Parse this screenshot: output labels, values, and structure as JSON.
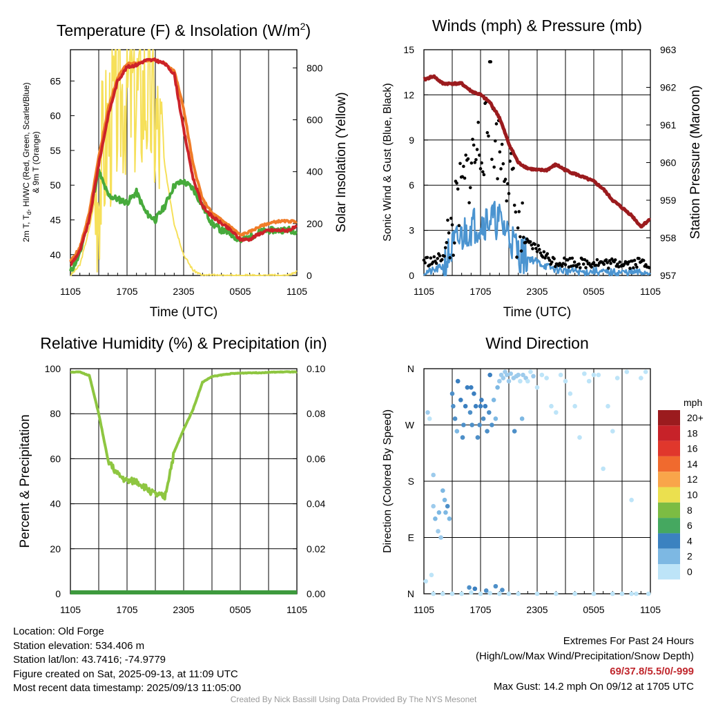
{
  "colors": {
    "red": "#cc2229",
    "orange": "#f07c28",
    "green": "#47aa3c",
    "darkgreen": "#4a8c3a",
    "yellow": "#f6e05a",
    "maroon": "#9b1b1e",
    "blue": "#4b94d0",
    "black": "#000000",
    "rh": "#8ec641",
    "precip": "#3e9a3e"
  },
  "x_ticks": [
    "1105",
    "1705",
    "2305",
    "0505",
    "1105"
  ],
  "panels": {
    "temp": {
      "title": "Temperature (F) & Insolation (W/m²)",
      "title_main": "Temperature (F) & Insolation (W/m",
      "title_sup": "2",
      "title_close": ")",
      "xlabel": "Time (UTC)",
      "ylabel_left_1": "2m T, T",
      "ylabel_left_sub": "d",
      "ylabel_left_2": ", HI/WC (Red, Green, Scarlet/Blue)",
      "ylabel_left_3": "& 9m T (Orange)",
      "ylabel_right": "Solar Insolation (Yellow)",
      "left_ticks": [
        "40",
        "45",
        "50",
        "55",
        "60",
        "65"
      ],
      "right_ticks": [
        "0",
        "200",
        "400",
        "600",
        "800"
      ]
    },
    "wind": {
      "title": "Winds (mph) & Pressure (mb)",
      "xlabel": "Time (UTC)",
      "ylabel_left": "Sonic Wind & Gust (Blue, Black)",
      "ylabel_right": "Station Pressure (Maroon)",
      "left_ticks": [
        "0",
        "3",
        "6",
        "9",
        "12",
        "15"
      ],
      "right_ticks": [
        "957",
        "958",
        "959",
        "960",
        "961",
        "962",
        "963"
      ]
    },
    "rh": {
      "title": "Relative Humidity (%) & Precipitation (in)",
      "ylabel_left": "Percent & Precipitation",
      "left_ticks": [
        "0",
        "20",
        "40",
        "60",
        "80",
        "100"
      ],
      "right_ticks": [
        "0.00",
        "0.02",
        "0.04",
        "0.06",
        "0.08",
        "0.10"
      ]
    },
    "dir": {
      "title": "Wind Direction",
      "ylabel_left": "Direction (Colored By Speed)",
      "dir_ticks": [
        "N",
        "E",
        "S",
        "W",
        "N"
      ],
      "legend_title": "mph",
      "legend_labels": [
        "20+",
        "18",
        "16",
        "14",
        "12",
        "10",
        "8",
        "6",
        "4",
        "2",
        "0"
      ],
      "legend_colors": [
        "#9b1b1e",
        "#c72229",
        "#e0372c",
        "#f06a2e",
        "#f9a54a",
        "#ebe04f",
        "#7cbc43",
        "#45a860",
        "#3b82c0",
        "#7db8e3",
        "#bde4f8"
      ]
    }
  },
  "chart_data": [
    {
      "type": "line",
      "panel": "temp",
      "title": "Temperature (F) & Insolation (W/m2)",
      "xlabel": "Time (UTC)",
      "x": [
        0,
        1,
        2,
        3,
        4,
        5,
        6,
        7,
        8,
        9,
        10,
        11,
        12,
        13,
        14,
        15,
        16,
        17,
        18,
        19,
        20,
        21,
        22,
        23,
        24
      ],
      "ylim": [
        37,
        69.5
      ],
      "y2lim": [
        0,
        870
      ],
      "series": [
        {
          "color": "red",
          "axis": "left",
          "values": [
            38.5,
            40.5,
            45,
            53,
            60,
            65,
            67,
            67.3,
            68,
            68,
            67.5,
            66,
            58,
            51,
            47,
            45.5,
            44.5,
            43.5,
            42.2,
            42.2,
            43,
            43.5,
            43.5,
            43.5,
            44
          ]
        },
        {
          "color": "orange",
          "axis": "left",
          "values": [
            39,
            41,
            46,
            54,
            61,
            65.5,
            67.5,
            67.5,
            68,
            68,
            67.5,
            66.5,
            61,
            53,
            48,
            46,
            45,
            44,
            42.8,
            43.3,
            44,
            44.5,
            44.8,
            44.8,
            44.8
          ]
        },
        {
          "color": "green",
          "axis": "left",
          "values": [
            37.5,
            40,
            46,
            52,
            48.5,
            48,
            47.5,
            49,
            46,
            45,
            47,
            50,
            50.5,
            49.5,
            47,
            44.5,
            43.5,
            43,
            42,
            42.5,
            43.2,
            43.5,
            43.5,
            43.6,
            43.4
          ]
        },
        {
          "color": "yellow",
          "axis": "right",
          "values": [
            0,
            40,
            180,
            380,
            570,
            680,
            730,
            700,
            720,
            600,
            420,
            200,
            80,
            20,
            0,
            0,
            0,
            0,
            0,
            0,
            0,
            0,
            0,
            0,
            15
          ]
        }
      ]
    },
    {
      "type": "line",
      "panel": "wind",
      "title": "Winds (mph) & Pressure (mb)",
      "xlabel": "Time (UTC)",
      "x": [
        0,
        1,
        2,
        3,
        4,
        5,
        6,
        7,
        8,
        9,
        10,
        11,
        12,
        13,
        14,
        15,
        16,
        17,
        18,
        19,
        20,
        21,
        22,
        23,
        24
      ],
      "ylim": [
        0,
        15
      ],
      "y2lim": [
        957,
        963
      ],
      "series": [
        {
          "color": "blue",
          "axis": "left",
          "values": [
            0.2,
            0.3,
            0.6,
            1.8,
            2.6,
            3.3,
            3.5,
            3.8,
            3.6,
            2.8,
            1.5,
            1.2,
            0.9,
            0.6,
            0.4,
            0.3,
            0.3,
            0.2,
            0.3,
            0.2,
            0.2,
            0.2,
            0.2,
            0.2,
            0.2
          ]
        },
        {
          "color": "black",
          "axis": "left",
          "style": "points",
          "values": [
            1.0,
            0.9,
            1.3,
            3.0,
            5.5,
            7.5,
            8.8,
            9.5,
            8.5,
            7.0,
            3.0,
            2.0,
            1.8,
            1.2,
            0.9,
            0.9,
            0.9,
            0.8,
            0.9,
            0.8,
            0.8,
            0.9,
            0.8,
            0.9,
            0.8
          ]
        },
        {
          "color": "maroon",
          "axis": "right",
          "values": [
            962.2,
            962.3,
            962.1,
            962.1,
            962.1,
            961.9,
            961.8,
            961.6,
            961.2,
            960.5,
            960.0,
            959.85,
            959.8,
            959.8,
            959.95,
            959.8,
            959.7,
            959.6,
            959.5,
            959.3,
            959.0,
            958.8,
            958.6,
            958.3,
            958.5
          ]
        }
      ]
    },
    {
      "type": "line",
      "panel": "rh",
      "title": "Relative Humidity (%) & Precipitation (in)",
      "x": [
        0,
        1,
        2,
        3,
        4,
        5,
        6,
        7,
        8,
        9,
        10,
        11,
        12,
        13,
        14,
        15,
        16,
        17,
        18,
        19,
        20,
        21,
        22,
        23,
        24
      ],
      "ylim": [
        0,
        100
      ],
      "y2lim": [
        0,
        0.1
      ],
      "series": [
        {
          "color": "rh",
          "axis": "left",
          "values": [
            98.5,
            98.5,
            97,
            80,
            59,
            53,
            50,
            50,
            47,
            44,
            43,
            63,
            73,
            82,
            94,
            96.5,
            97.2,
            97.8,
            98,
            98.2,
            98.2,
            98.4,
            98.5,
            98.6,
            98.5
          ]
        },
        {
          "color": "precip",
          "axis": "right",
          "values": [
            0,
            0,
            0,
            0,
            0,
            0,
            0,
            0,
            0,
            0,
            0,
            0,
            0,
            0,
            0,
            0,
            0,
            0,
            0,
            0,
            0,
            0,
            0,
            0,
            0
          ]
        }
      ]
    },
    {
      "type": "scatter",
      "panel": "dir",
      "title": "Wind Direction",
      "ylabel": "Direction (Colored By Speed)",
      "ylim": [
        0,
        360
      ],
      "x_unit": "hours after 1105 UTC",
      "points_x": [
        0.2,
        0.4,
        0.6,
        0.8,
        1.0,
        1.0,
        1.2,
        1.5,
        1.6,
        1.8,
        2.0,
        2.2,
        2.3,
        2.5,
        2.7,
        3.0,
        3.1,
        3.3,
        3.5,
        3.6,
        3.9,
        4.1,
        4.2,
        4.4,
        4.6,
        4.9,
        5.1,
        5.3,
        5.5,
        5.7,
        5.9,
        6.1,
        6.3,
        6.5,
        6.7,
        6.9,
        7.2,
        7.4,
        7.6,
        7.8,
        8.0,
        8.2,
        8.4,
        8.6,
        8.8,
        9.0,
        9.2,
        9.5,
        9.8,
        10.0,
        10.2,
        10.5,
        10.8,
        11.0,
        11.3,
        11.6,
        12.0,
        12.5,
        13.0,
        13.5,
        14.0,
        14.5,
        15.0,
        15.5,
        16.0,
        16.5,
        17.0,
        17.5,
        18.0,
        18.5,
        19.0,
        19.5,
        20.0,
        20.5,
        21.0,
        21.5,
        22.0,
        22.5,
        23.0,
        23.5,
        1.0,
        2.0,
        3.0,
        4.0,
        5.0,
        6.0,
        7.0,
        8.0,
        9.0,
        10.0,
        12.0,
        14.0,
        16.0,
        18.0,
        20.0,
        22.0,
        23.8,
        4.8,
        5.4,
        6.6,
        7.6,
        9.6,
        10.4,
        5.0,
        6.0,
        7.0,
        8.3
      ],
      "points_y": [
        20,
        290,
        280,
        30,
        190,
        140,
        120,
        100,
        130,
        90,
        165,
        150,
        130,
        140,
        120,
        320,
        300,
        280,
        260,
        340,
        310,
        250,
        270,
        300,
        330,
        290,
        270,
        320,
        300,
        250,
        270,
        310,
        280,
        300,
        260,
        290,
        270,
        310,
        280,
        330,
        340,
        350,
        345,
        355,
        350,
        340,
        352,
        345,
        348,
        350,
        340,
        350,
        345,
        340,
        355,
        348,
        330,
        350,
        345,
        300,
        290,
        350,
        340,
        320,
        300,
        250,
        352,
        340,
        350,
        350,
        200,
        300,
        260,
        345,
        0,
        355,
        150,
        0,
        345,
        355,
        0,
        0,
        0,
        0,
        2,
        0,
        1,
        0,
        0,
        0,
        0,
        0,
        0,
        0,
        0,
        0,
        0,
        10,
        8,
        5,
        12,
        260,
        280,
        330,
        300,
        350,
        6
      ],
      "points_speed": [
        0,
        1,
        0,
        0,
        1,
        1,
        2,
        1,
        2,
        1,
        2,
        2,
        2,
        3,
        2,
        3,
        3,
        3,
        2,
        4,
        4,
        3,
        3,
        4,
        4,
        3,
        3,
        4,
        4,
        3,
        3,
        4,
        3,
        4,
        3,
        3,
        3,
        2,
        2,
        2,
        1,
        1,
        1,
        1,
        1,
        1,
        1,
        1,
        1,
        1,
        0,
        1,
        1,
        0,
        0,
        1,
        0,
        0,
        0,
        0,
        0,
        0,
        0,
        0,
        0,
        0,
        0,
        0,
        0,
        0,
        0,
        0,
        0,
        0,
        0,
        0,
        0,
        0,
        0,
        0,
        0,
        0,
        0,
        0,
        0,
        0,
        0,
        0,
        0,
        0,
        0,
        0,
        0,
        0,
        0,
        0,
        0,
        3,
        4,
        3,
        3,
        3,
        2,
        4,
        4,
        4,
        3
      ],
      "legend": {
        "title": "mph",
        "labels": [
          "20+",
          "18",
          "16",
          "14",
          "12",
          "10",
          "8",
          "6",
          "4",
          "2",
          "0"
        ]
      }
    }
  ],
  "footer": {
    "location": "Location: Old Forge",
    "elevation": "Station elevation: 534.406 m",
    "latlon": "Station lat/lon: 43.7416; -74.9779",
    "created": "Figure created on Sat, 2025-09-13, at 11:09 UTC",
    "recent": "Most recent data timestamp: 2025/09/13 11:05:00",
    "extremes_title": "Extremes For Past 24 Hours",
    "extremes_sub": "(High/Low/Max Wind/Precipitation/Snow Depth)",
    "extremes_values": "69/37.8/5.5/0/-999",
    "max_gust": "Max Gust: 14.2 mph On 09/12 at 1705 UTC",
    "credit": "Created By Nick Bassill Using Data Provided By The NYS Mesonet"
  }
}
